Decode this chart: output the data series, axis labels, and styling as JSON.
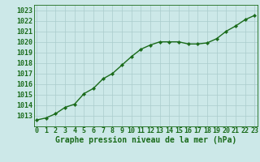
{
  "x": [
    0,
    1,
    2,
    3,
    4,
    5,
    6,
    7,
    8,
    9,
    10,
    11,
    12,
    13,
    14,
    15,
    16,
    17,
    18,
    19,
    20,
    21,
    22,
    23
  ],
  "y": [
    1012.6,
    1012.8,
    1013.2,
    1013.8,
    1014.1,
    1015.1,
    1015.6,
    1016.5,
    1017.0,
    1017.8,
    1018.6,
    1019.3,
    1019.7,
    1020.0,
    1020.0,
    1020.0,
    1019.8,
    1019.8,
    1019.9,
    1020.3,
    1021.0,
    1021.5,
    1022.1,
    1022.5
  ],
  "line_color": "#1a6b1a",
  "marker": "D",
  "marker_size": 2.2,
  "line_width": 1.0,
  "bg_color": "#cce8e8",
  "grid_color": "#aacccc",
  "xlabel": "Graphe pression niveau de la mer (hPa)",
  "xlabel_fontsize": 7,
  "tick_label_color": "#1a6b1a",
  "tick_fontsize": 6,
  "ylim": [
    1012.0,
    1023.5
  ],
  "yticks": [
    1013,
    1014,
    1015,
    1016,
    1017,
    1018,
    1019,
    1020,
    1021,
    1022,
    1023
  ],
  "xticks": [
    0,
    1,
    2,
    3,
    4,
    5,
    6,
    7,
    8,
    9,
    10,
    11,
    12,
    13,
    14,
    15,
    16,
    17,
    18,
    19,
    20,
    21,
    22,
    23
  ],
  "xlim": [
    -0.3,
    23.3
  ]
}
